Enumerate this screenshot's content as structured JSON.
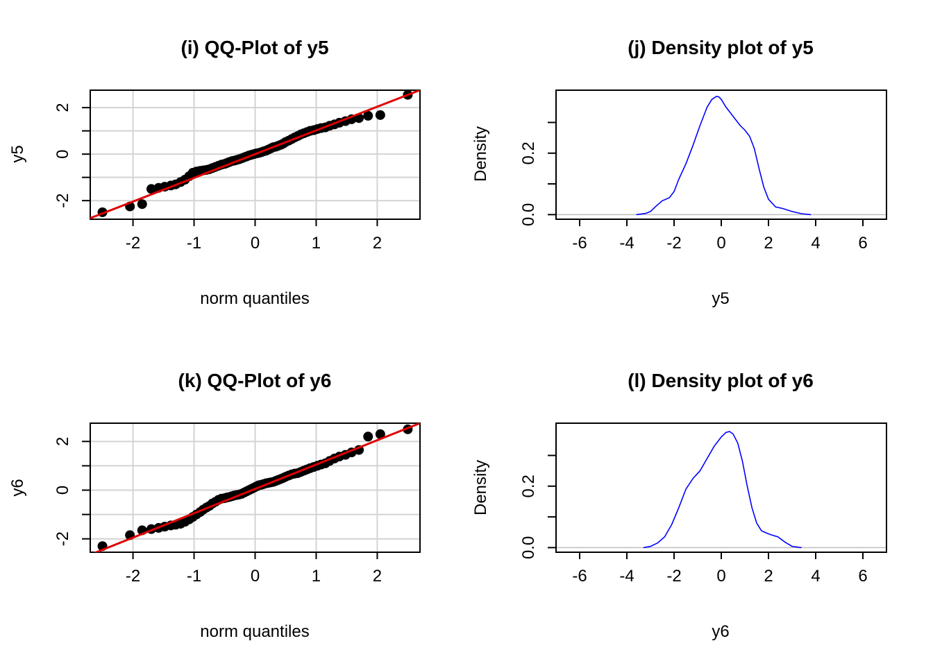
{
  "chart_data": [
    {
      "type": "scatter",
      "title": "(i) QQ-Plot of y5",
      "xlabel": "norm quantiles",
      "ylabel": "y5",
      "xlim": [
        -2.7,
        2.7
      ],
      "ylim": [
        -2.8,
        2.75
      ],
      "xticks": [
        -2,
        -1,
        0,
        1,
        2
      ],
      "xtick_labels": [
        "-2",
        "-1",
        "0",
        "1",
        "2"
      ],
      "yticks": [
        -2,
        0,
        2
      ],
      "ytick_labels": [
        "-2",
        "0",
        "2"
      ],
      "grid": true,
      "reference_line": {
        "intercept": 0.0,
        "slope": 1.02,
        "color": "#e00000"
      },
      "point_color": "#000000",
      "series": [
        {
          "x": [
            -2.5,
            -2.05,
            -1.85,
            -1.7,
            -1.58,
            -1.48,
            -1.38,
            -1.3,
            -1.22,
            -1.15,
            -1.08,
            -1.02,
            -0.96,
            -0.9,
            -0.85,
            -0.8,
            -0.75,
            -0.7,
            -0.65,
            -0.6,
            -0.55,
            -0.5,
            -0.46,
            -0.42,
            -0.38,
            -0.34,
            -0.3,
            -0.26,
            -0.22,
            -0.18,
            -0.14,
            -0.1,
            -0.06,
            -0.02,
            0.02,
            0.06,
            0.1,
            0.14,
            0.18,
            0.22,
            0.26,
            0.3,
            0.34,
            0.38,
            0.42,
            0.46,
            0.5,
            0.55,
            0.6,
            0.65,
            0.7,
            0.75,
            0.8,
            0.85,
            0.9,
            0.96,
            1.02,
            1.08,
            1.15,
            1.22,
            1.3,
            1.38,
            1.48,
            1.58,
            1.7,
            1.85,
            2.05,
            2.5
          ],
          "y": [
            -2.5,
            -2.25,
            -2.15,
            -1.5,
            -1.45,
            -1.4,
            -1.35,
            -1.3,
            -1.2,
            -1.1,
            -0.95,
            -0.8,
            -0.75,
            -0.72,
            -0.7,
            -0.68,
            -0.65,
            -0.6,
            -0.55,
            -0.5,
            -0.45,
            -0.42,
            -0.38,
            -0.34,
            -0.3,
            -0.28,
            -0.25,
            -0.22,
            -0.18,
            -0.14,
            -0.1,
            -0.06,
            -0.03,
            0.0,
            0.03,
            0.05,
            0.08,
            0.12,
            0.15,
            0.2,
            0.25,
            0.3,
            0.32,
            0.36,
            0.4,
            0.45,
            0.52,
            0.58,
            0.65,
            0.72,
            0.78,
            0.85,
            0.9,
            0.95,
            1.0,
            1.03,
            1.08,
            1.12,
            1.15,
            1.22,
            1.28,
            1.35,
            1.42,
            1.5,
            1.55,
            1.65,
            1.68,
            2.55
          ]
        }
      ]
    },
    {
      "type": "line",
      "title": "(j) Density plot of y5",
      "xlabel": "y5",
      "ylabel": "Density",
      "xlim": [
        -7,
        7
      ],
      "ylim": [
        -0.015,
        0.405
      ],
      "xticks": [
        -6,
        -4,
        -2,
        0,
        2,
        4,
        6
      ],
      "xtick_labels": [
        "-6",
        "-4",
        "-2",
        "0",
        "2",
        "4",
        "6"
      ],
      "yticks": [
        0.0,
        0.1,
        0.2,
        0.3
      ],
      "ytick_labels": [
        "0.0",
        "",
        "0.2",
        ""
      ],
      "baseline": 0,
      "line_color": "#0000ff",
      "series": [
        {
          "x": [
            -3.6,
            -3.2,
            -3.0,
            -2.8,
            -2.5,
            -2.2,
            -2.0,
            -1.8,
            -1.5,
            -1.2,
            -0.9,
            -0.6,
            -0.4,
            -0.2,
            -0.1,
            0.0,
            0.2,
            0.5,
            0.8,
            1.0,
            1.2,
            1.4,
            1.6,
            1.8,
            2.0,
            2.3,
            2.6,
            3.0,
            3.4,
            3.8
          ],
          "y": [
            0.0,
            0.004,
            0.01,
            0.025,
            0.045,
            0.055,
            0.075,
            0.115,
            0.165,
            0.225,
            0.29,
            0.35,
            0.375,
            0.385,
            0.383,
            0.375,
            0.35,
            0.32,
            0.29,
            0.275,
            0.255,
            0.215,
            0.15,
            0.09,
            0.05,
            0.025,
            0.02,
            0.01,
            0.003,
            0.0
          ]
        }
      ]
    },
    {
      "type": "scatter",
      "title": "(k) QQ-Plot of y6",
      "xlabel": "norm quantiles",
      "ylabel": "y6",
      "xlim": [
        -2.7,
        2.7
      ],
      "ylim": [
        -2.55,
        2.75
      ],
      "xticks": [
        -2,
        -1,
        0,
        1,
        2
      ],
      "xtick_labels": [
        "-2",
        "-1",
        "0",
        "1",
        "2"
      ],
      "yticks": [
        -2,
        0,
        2
      ],
      "ytick_labels": [
        "-2",
        "0",
        "2"
      ],
      "grid": true,
      "reference_line": {
        "intercept": 0.05,
        "slope": 1.0,
        "color": "#e00000"
      },
      "point_color": "#000000",
      "series": [
        {
          "x": [
            -2.5,
            -2.05,
            -1.85,
            -1.7,
            -1.58,
            -1.48,
            -1.38,
            -1.3,
            -1.22,
            -1.15,
            -1.08,
            -1.02,
            -0.96,
            -0.9,
            -0.85,
            -0.8,
            -0.75,
            -0.7,
            -0.65,
            -0.6,
            -0.55,
            -0.5,
            -0.46,
            -0.42,
            -0.38,
            -0.34,
            -0.3,
            -0.26,
            -0.22,
            -0.18,
            -0.14,
            -0.1,
            -0.06,
            -0.02,
            0.02,
            0.06,
            0.1,
            0.14,
            0.18,
            0.22,
            0.26,
            0.3,
            0.34,
            0.38,
            0.42,
            0.46,
            0.5,
            0.55,
            0.6,
            0.65,
            0.7,
            0.75,
            0.8,
            0.85,
            0.9,
            0.96,
            1.02,
            1.08,
            1.15,
            1.22,
            1.3,
            1.38,
            1.48,
            1.58,
            1.7,
            1.85,
            2.05,
            2.5
          ],
          "y": [
            -2.3,
            -1.85,
            -1.65,
            -1.6,
            -1.55,
            -1.5,
            -1.45,
            -1.42,
            -1.38,
            -1.3,
            -1.2,
            -1.1,
            -1.0,
            -0.9,
            -0.8,
            -0.72,
            -0.65,
            -0.55,
            -0.48,
            -0.4,
            -0.35,
            -0.33,
            -0.3,
            -0.28,
            -0.25,
            -0.22,
            -0.2,
            -0.18,
            -0.15,
            -0.1,
            -0.05,
            0.0,
            0.05,
            0.1,
            0.15,
            0.2,
            0.22,
            0.25,
            0.28,
            0.3,
            0.32,
            0.34,
            0.38,
            0.42,
            0.46,
            0.5,
            0.55,
            0.6,
            0.65,
            0.68,
            0.7,
            0.75,
            0.8,
            0.85,
            0.9,
            0.95,
            1.0,
            1.05,
            1.1,
            1.2,
            1.3,
            1.38,
            1.45,
            1.55,
            1.65,
            2.2,
            2.3,
            2.5
          ]
        }
      ]
    },
    {
      "type": "line",
      "title": "(l) Density plot of y6",
      "xlabel": "y6",
      "ylabel": "Density",
      "xlim": [
        -7,
        7
      ],
      "ylim": [
        -0.015,
        0.405
      ],
      "xticks": [
        -6,
        -4,
        -2,
        0,
        2,
        4,
        6
      ],
      "xtick_labels": [
        "-6",
        "-4",
        "-2",
        "0",
        "2",
        "4",
        "6"
      ],
      "yticks": [
        0.0,
        0.1,
        0.2,
        0.3
      ],
      "ytick_labels": [
        "0.0",
        "",
        "0.2",
        ""
      ],
      "baseline": 0,
      "line_color": "#0000ff",
      "series": [
        {
          "x": [
            -3.3,
            -3.0,
            -2.7,
            -2.4,
            -2.1,
            -1.8,
            -1.5,
            -1.2,
            -0.9,
            -0.6,
            -0.3,
            0.0,
            0.2,
            0.35,
            0.5,
            0.7,
            0.9,
            1.1,
            1.3,
            1.5,
            1.7,
            1.9,
            2.1,
            2.4,
            2.7,
            3.0,
            3.4
          ],
          "y": [
            0.0,
            0.004,
            0.015,
            0.035,
            0.075,
            0.13,
            0.19,
            0.225,
            0.25,
            0.29,
            0.33,
            0.36,
            0.375,
            0.378,
            0.37,
            0.34,
            0.28,
            0.2,
            0.13,
            0.08,
            0.055,
            0.048,
            0.042,
            0.035,
            0.018,
            0.004,
            0.0
          ]
        }
      ]
    }
  ]
}
